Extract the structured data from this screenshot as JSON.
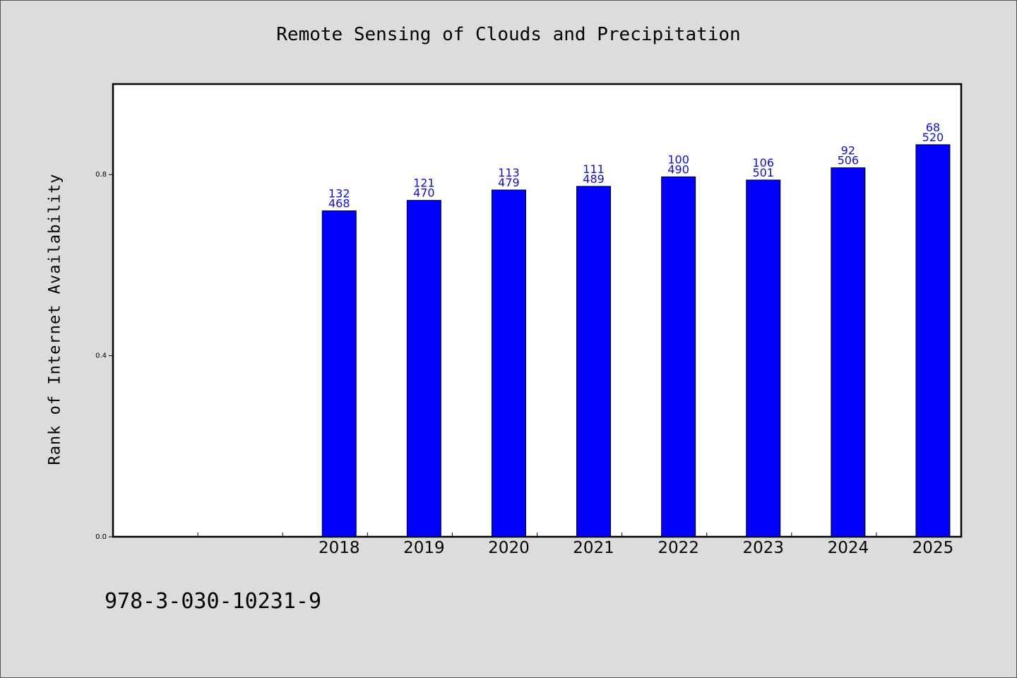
{
  "chart_data": {
    "type": "bar",
    "title": "Remote Sensing of Clouds and Precipitation",
    "ylabel": "Rank of Internet Availability",
    "xlabel": "",
    "ylim": [
      0,
      1.0
    ],
    "yticks": [
      0.0,
      0.4,
      0.8
    ],
    "ytick_labels": [
      "0.0",
      "0.4",
      "0.8"
    ],
    "categories": [
      "",
      "",
      "2018",
      "2019",
      "2020",
      "2021",
      "2022",
      "2023",
      "2024",
      "2025"
    ],
    "values": [
      null,
      null,
      0.72,
      0.743,
      0.766,
      0.774,
      0.795,
      0.788,
      0.815,
      0.866
    ],
    "annotations": [
      null,
      null,
      [
        "132",
        "468"
      ],
      [
        "121",
        "470"
      ],
      [
        "113",
        "479"
      ],
      [
        "111",
        "489"
      ],
      [
        "100",
        "490"
      ],
      [
        "106",
        "501"
      ],
      [
        "92",
        "506"
      ],
      [
        "68",
        "520"
      ]
    ],
    "bar_color": "#0000ff",
    "label_color": "#1010c8",
    "grid": false,
    "legend": "none"
  },
  "footer": {
    "isbn": "978-3-030-10231-9"
  }
}
